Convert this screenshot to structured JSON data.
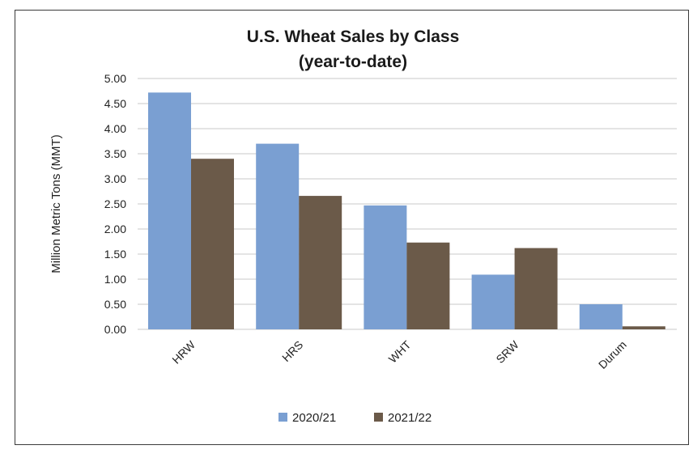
{
  "chart_data": {
    "type": "bar",
    "title": "U.S. Wheat Sales by Class",
    "subtitle": "(year-to-date)",
    "xlabel": "",
    "ylabel": "Million Metric Tons (MMT)",
    "ylim": [
      0,
      5
    ],
    "yticks": [
      "0.00",
      "0.50",
      "1.00",
      "1.50",
      "2.00",
      "2.50",
      "3.00",
      "3.50",
      "4.00",
      "4.50",
      "5.00"
    ],
    "categories": [
      "HRW",
      "HRS",
      "WHT",
      "SRW",
      "Durum"
    ],
    "series": [
      {
        "name": "2020/21",
        "values": [
          4.72,
          3.7,
          2.47,
          1.09,
          0.5
        ],
        "color": "#7a9fd2"
      },
      {
        "name": "2021/22",
        "values": [
          3.4,
          2.66,
          1.73,
          1.62,
          0.06
        ],
        "color": "#6b5a49"
      }
    ],
    "grid": true,
    "legend": "bottom"
  }
}
